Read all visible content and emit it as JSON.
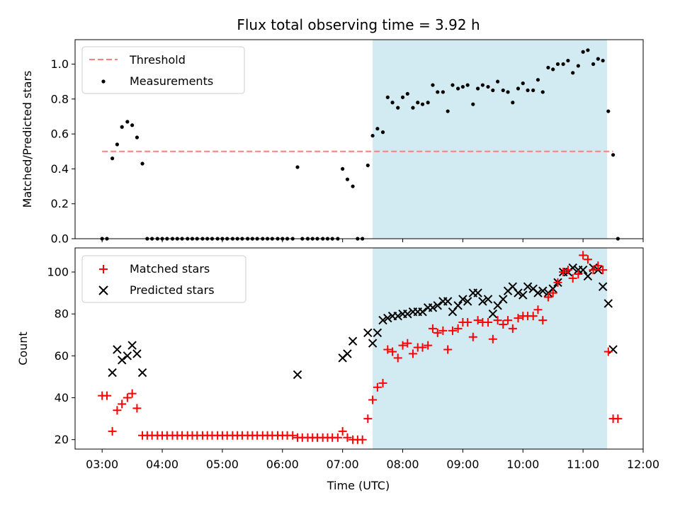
{
  "title": "Flux total observing time = 3.92 h",
  "xlabel": "Time (UTC)",
  "x_ticks": [
    "03:00",
    "04:00",
    "05:00",
    "06:00",
    "07:00",
    "08:00",
    "09:00",
    "10:00",
    "11:00",
    "12:00"
  ],
  "x_tick_hours": [
    3,
    4,
    5,
    6,
    7,
    8,
    9,
    10,
    11,
    12
  ],
  "xlim_hours": [
    2.55,
    12.0
  ],
  "observing_window_hours": [
    7.5,
    11.4
  ],
  "colors": {
    "window": "#add8e6",
    "threshold": "#ff7f7f",
    "matched": "#ff0000",
    "predicted": "#000000"
  },
  "chart_data": [
    {
      "type": "scatter",
      "ylabel": "Matched/Predicted stars",
      "ylim": [
        0,
        1.14
      ],
      "y_ticks": [
        "0.0",
        "0.2",
        "0.4",
        "0.6",
        "0.8",
        "1.0"
      ],
      "y_tick_values": [
        0,
        0.2,
        0.4,
        0.6,
        0.8,
        1.0
      ],
      "legend": {
        "position": "upper-left",
        "threshold_label": "Threshold",
        "measurements_label": "Measurements"
      },
      "threshold": {
        "value": 0.5,
        "x_range": [
          3.0,
          11.5
        ]
      },
      "measurements": [
        [
          3.0,
          0
        ],
        [
          3.08,
          0
        ],
        [
          3.17,
          0.46
        ],
        [
          3.25,
          0.54
        ],
        [
          3.33,
          0.64
        ],
        [
          3.42,
          0.67
        ],
        [
          3.5,
          0.65
        ],
        [
          3.58,
          0.58
        ],
        [
          3.67,
          0.43
        ],
        [
          3.75,
          0
        ],
        [
          3.83,
          0
        ],
        [
          3.92,
          0
        ],
        [
          4.0,
          0
        ],
        [
          4.08,
          0
        ],
        [
          4.17,
          0
        ],
        [
          4.25,
          0
        ],
        [
          4.33,
          0
        ],
        [
          4.42,
          0
        ],
        [
          4.5,
          0
        ],
        [
          4.58,
          0
        ],
        [
          4.67,
          0
        ],
        [
          4.75,
          0
        ],
        [
          4.83,
          0
        ],
        [
          4.92,
          0
        ],
        [
          5.0,
          0
        ],
        [
          5.08,
          0
        ],
        [
          5.17,
          0
        ],
        [
          5.25,
          0
        ],
        [
          5.33,
          0
        ],
        [
          5.42,
          0
        ],
        [
          5.5,
          0
        ],
        [
          5.58,
          0
        ],
        [
          5.67,
          0
        ],
        [
          5.75,
          0
        ],
        [
          5.83,
          0
        ],
        [
          5.92,
          0
        ],
        [
          6.0,
          0
        ],
        [
          6.08,
          0
        ],
        [
          6.17,
          0
        ],
        [
          6.25,
          0.41
        ],
        [
          6.33,
          0
        ],
        [
          6.42,
          0
        ],
        [
          6.5,
          0
        ],
        [
          6.58,
          0
        ],
        [
          6.67,
          0
        ],
        [
          6.75,
          0
        ],
        [
          6.83,
          0
        ],
        [
          6.92,
          0
        ],
        [
          7.0,
          0.4
        ],
        [
          7.08,
          0.34
        ],
        [
          7.17,
          0.3
        ],
        [
          7.25,
          0
        ],
        [
          7.33,
          0
        ],
        [
          7.42,
          0.42
        ],
        [
          7.5,
          0.59
        ],
        [
          7.58,
          0.63
        ],
        [
          7.67,
          0.61
        ],
        [
          7.75,
          0.81
        ],
        [
          7.83,
          0.78
        ],
        [
          7.92,
          0.75
        ],
        [
          8.0,
          0.81
        ],
        [
          8.08,
          0.83
        ],
        [
          8.17,
          0.75
        ],
        [
          8.25,
          0.78
        ],
        [
          8.33,
          0.77
        ],
        [
          8.42,
          0.78
        ],
        [
          8.5,
          0.88
        ],
        [
          8.58,
          0.84
        ],
        [
          8.67,
          0.84
        ],
        [
          8.75,
          0.73
        ],
        [
          8.83,
          0.88
        ],
        [
          8.92,
          0.86
        ],
        [
          9.0,
          0.87
        ],
        [
          9.08,
          0.88
        ],
        [
          9.17,
          0.77
        ],
        [
          9.25,
          0.86
        ],
        [
          9.33,
          0.88
        ],
        [
          9.42,
          0.87
        ],
        [
          9.5,
          0.85
        ],
        [
          9.58,
          0.9
        ],
        [
          9.67,
          0.85
        ],
        [
          9.75,
          0.84
        ],
        [
          9.83,
          0.78
        ],
        [
          9.92,
          0.86
        ],
        [
          10.0,
          0.89
        ],
        [
          10.08,
          0.85
        ],
        [
          10.17,
          0.85
        ],
        [
          10.25,
          0.91
        ],
        [
          10.33,
          0.84
        ],
        [
          10.42,
          0.98
        ],
        [
          10.5,
          0.97
        ],
        [
          10.58,
          1.0
        ],
        [
          10.67,
          1.0
        ],
        [
          10.75,
          1.02
        ],
        [
          10.83,
          0.95
        ],
        [
          10.92,
          0.99
        ],
        [
          11.0,
          1.07
        ],
        [
          11.08,
          1.08
        ],
        [
          11.17,
          1.0
        ],
        [
          11.25,
          1.03
        ],
        [
          11.33,
          1.02
        ],
        [
          11.42,
          0.73
        ],
        [
          11.5,
          0.48
        ],
        [
          11.58,
          0
        ]
      ]
    },
    {
      "type": "scatter",
      "ylabel": "Count",
      "ylim": [
        15.5,
        111.5
      ],
      "y_ticks": [
        "20",
        "40",
        "60",
        "80",
        "100"
      ],
      "y_tick_values": [
        20,
        40,
        60,
        80,
        100
      ],
      "legend": {
        "position": "upper-left",
        "matched_label": "Matched stars",
        "predicted_label": "Predicted stars"
      },
      "matched": [
        [
          3.0,
          41
        ],
        [
          3.08,
          41
        ],
        [
          3.17,
          24
        ],
        [
          3.25,
          34
        ],
        [
          3.33,
          37
        ],
        [
          3.42,
          40
        ],
        [
          3.5,
          42
        ],
        [
          3.58,
          35
        ],
        [
          3.67,
          22
        ],
        [
          3.75,
          22
        ],
        [
          3.83,
          22
        ],
        [
          3.92,
          22
        ],
        [
          4.0,
          22
        ],
        [
          4.08,
          22
        ],
        [
          4.17,
          22
        ],
        [
          4.25,
          22
        ],
        [
          4.33,
          22
        ],
        [
          4.42,
          22
        ],
        [
          4.5,
          22
        ],
        [
          4.58,
          22
        ],
        [
          4.67,
          22
        ],
        [
          4.75,
          22
        ],
        [
          4.83,
          22
        ],
        [
          4.92,
          22
        ],
        [
          5.0,
          22
        ],
        [
          5.08,
          22
        ],
        [
          5.17,
          22
        ],
        [
          5.25,
          22
        ],
        [
          5.33,
          22
        ],
        [
          5.42,
          22
        ],
        [
          5.5,
          22
        ],
        [
          5.58,
          22
        ],
        [
          5.67,
          22
        ],
        [
          5.75,
          22
        ],
        [
          5.83,
          22
        ],
        [
          5.92,
          22
        ],
        [
          6.0,
          22
        ],
        [
          6.08,
          22
        ],
        [
          6.17,
          22
        ],
        [
          6.25,
          21
        ],
        [
          6.33,
          21
        ],
        [
          6.42,
          21
        ],
        [
          6.5,
          21
        ],
        [
          6.58,
          21
        ],
        [
          6.67,
          21
        ],
        [
          6.75,
          21
        ],
        [
          6.83,
          21
        ],
        [
          6.92,
          21
        ],
        [
          7.0,
          24
        ],
        [
          7.08,
          21
        ],
        [
          7.17,
          20
        ],
        [
          7.25,
          20
        ],
        [
          7.33,
          20
        ],
        [
          7.42,
          30
        ],
        [
          7.5,
          39
        ],
        [
          7.58,
          45
        ],
        [
          7.67,
          47
        ],
        [
          7.75,
          63
        ],
        [
          7.83,
          62
        ],
        [
          7.92,
          59
        ],
        [
          8.0,
          65
        ],
        [
          8.08,
          66
        ],
        [
          8.17,
          61
        ],
        [
          8.25,
          64
        ],
        [
          8.33,
          64
        ],
        [
          8.42,
          65
        ],
        [
          8.5,
          73
        ],
        [
          8.58,
          71
        ],
        [
          8.67,
          72
        ],
        [
          8.75,
          63
        ],
        [
          8.83,
          72
        ],
        [
          8.92,
          73
        ],
        [
          9.0,
          76
        ],
        [
          9.08,
          76
        ],
        [
          9.17,
          69
        ],
        [
          9.25,
          77
        ],
        [
          9.33,
          76
        ],
        [
          9.42,
          76
        ],
        [
          9.5,
          68
        ],
        [
          9.58,
          77
        ],
        [
          9.67,
          75
        ],
        [
          9.75,
          77
        ],
        [
          9.83,
          73
        ],
        [
          9.92,
          78
        ],
        [
          10.0,
          79
        ],
        [
          10.08,
          79
        ],
        [
          10.17,
          79
        ],
        [
          10.25,
          82
        ],
        [
          10.33,
          77
        ],
        [
          10.42,
          88
        ],
        [
          10.5,
          90
        ],
        [
          10.58,
          95
        ],
        [
          10.67,
          100
        ],
        [
          10.75,
          101
        ],
        [
          10.83,
          97
        ],
        [
          10.92,
          99
        ],
        [
          11.0,
          108
        ],
        [
          11.08,
          106
        ],
        [
          11.17,
          101
        ],
        [
          11.25,
          103
        ],
        [
          11.33,
          101
        ],
        [
          11.42,
          62
        ],
        [
          11.5,
          30
        ],
        [
          11.58,
          30
        ]
      ],
      "predicted": [
        [
          3.17,
          52
        ],
        [
          3.25,
          63
        ],
        [
          3.33,
          58
        ],
        [
          3.42,
          60
        ],
        [
          3.5,
          65
        ],
        [
          3.58,
          61
        ],
        [
          3.67,
          52
        ],
        [
          6.25,
          51
        ],
        [
          7.0,
          59
        ],
        [
          7.08,
          61
        ],
        [
          7.17,
          67
        ],
        [
          7.42,
          71
        ],
        [
          7.5,
          66
        ],
        [
          7.58,
          71
        ],
        [
          7.67,
          77
        ],
        [
          7.75,
          78
        ],
        [
          7.83,
          79
        ],
        [
          7.92,
          79
        ],
        [
          8.0,
          80
        ],
        [
          8.08,
          80
        ],
        [
          8.17,
          81
        ],
        [
          8.25,
          81
        ],
        [
          8.33,
          81
        ],
        [
          8.42,
          83
        ],
        [
          8.5,
          83
        ],
        [
          8.58,
          84
        ],
        [
          8.67,
          86
        ],
        [
          8.75,
          86
        ],
        [
          8.83,
          81
        ],
        [
          8.92,
          84
        ],
        [
          9.0,
          87
        ],
        [
          9.08,
          86
        ],
        [
          9.17,
          90
        ],
        [
          9.25,
          90
        ],
        [
          9.33,
          86
        ],
        [
          9.42,
          87
        ],
        [
          9.5,
          80
        ],
        [
          9.58,
          84
        ],
        [
          9.67,
          87
        ],
        [
          9.75,
          91
        ],
        [
          9.83,
          93
        ],
        [
          9.92,
          90
        ],
        [
          10.0,
          89
        ],
        [
          10.08,
          93
        ],
        [
          10.17,
          92
        ],
        [
          10.25,
          90
        ],
        [
          10.33,
          91
        ],
        [
          10.42,
          90
        ],
        [
          10.5,
          92
        ],
        [
          10.58,
          95
        ],
        [
          10.67,
          100
        ],
        [
          10.75,
          100
        ],
        [
          10.83,
          102
        ],
        [
          10.92,
          101
        ],
        [
          11.0,
          101
        ],
        [
          11.08,
          98
        ],
        [
          11.17,
          102
        ],
        [
          11.25,
          101
        ],
        [
          11.33,
          93
        ],
        [
          11.42,
          85
        ],
        [
          11.5,
          63
        ]
      ]
    }
  ]
}
